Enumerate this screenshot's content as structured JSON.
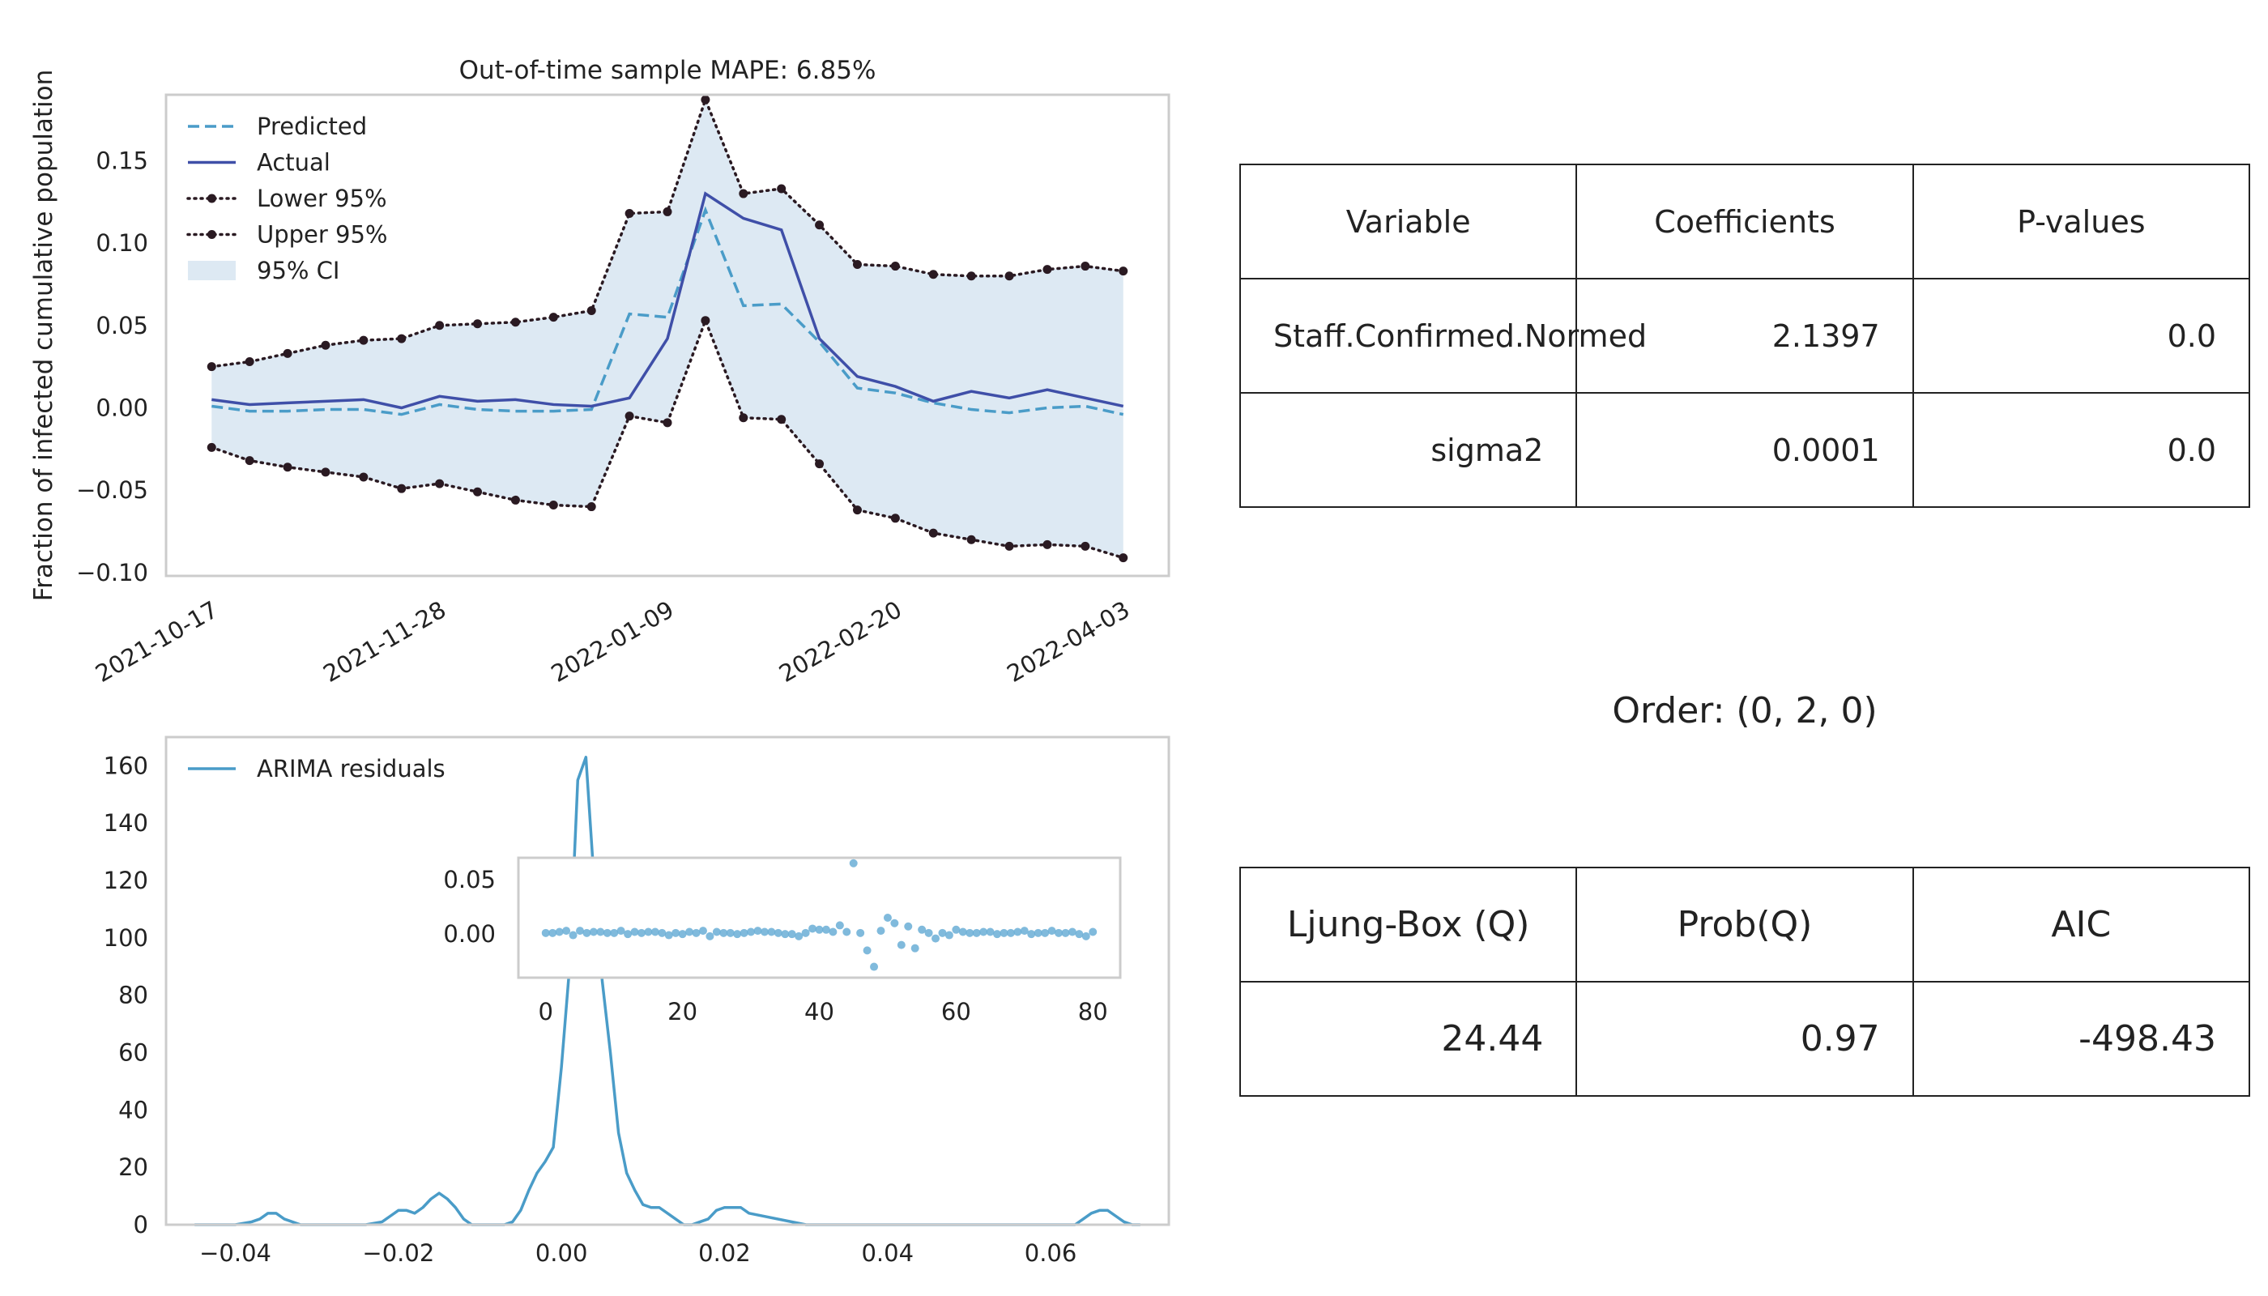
{
  "chart_data": [
    {
      "type": "line",
      "title": "Out-of-time sample MAPE: 6.85%",
      "xlabel": "",
      "ylabel": "Fraction of infected cumulative population",
      "x_tick_labels": [
        "2021-10-17",
        "2021-11-28",
        "2022-01-09",
        "2022-02-20",
        "2022-04-03"
      ],
      "yticks": [
        -0.1,
        -0.05,
        0.0,
        0.05,
        0.1,
        0.15
      ],
      "ylim": [
        -0.102,
        0.19
      ],
      "grid": false,
      "legend_position": "upper-left",
      "x": [
        "2021-10-17",
        "2021-10-24",
        "2021-10-31",
        "2021-11-07",
        "2021-11-14",
        "2021-11-21",
        "2021-11-28",
        "2021-12-05",
        "2021-12-12",
        "2021-12-19",
        "2021-12-26",
        "2022-01-02",
        "2022-01-09",
        "2022-01-16",
        "2022-01-23",
        "2022-01-30",
        "2022-02-06",
        "2022-02-13",
        "2022-02-20",
        "2022-02-27",
        "2022-03-06",
        "2022-03-13",
        "2022-03-20",
        "2022-03-27",
        "2022-04-03"
      ],
      "series": [
        {
          "name": "Predicted",
          "style": "dashed",
          "color": "#4a9cc8",
          "values": [
            0.001,
            -0.002,
            -0.002,
            -0.001,
            -0.001,
            -0.004,
            0.002,
            -0.001,
            -0.002,
            -0.002,
            -0.001,
            0.057,
            0.055,
            0.12,
            0.062,
            0.063,
            0.04,
            0.012,
            0.009,
            0.003,
            -0.001,
            -0.003,
            0.0,
            0.001,
            -0.004
          ]
        },
        {
          "name": "Actual",
          "style": "solid",
          "color": "#3f4fa8",
          "values": [
            0.005,
            0.002,
            0.003,
            0.004,
            0.005,
            0.0,
            0.007,
            0.004,
            0.005,
            0.002,
            0.001,
            0.006,
            0.042,
            0.13,
            0.115,
            0.108,
            0.042,
            0.019,
            0.013,
            0.004,
            0.01,
            0.006,
            0.011,
            0.006,
            0.001
          ]
        },
        {
          "name": "Lower 95%",
          "style": "dotted-markers",
          "color": "#2a1a22",
          "values": [
            -0.024,
            -0.032,
            -0.036,
            -0.039,
            -0.042,
            -0.049,
            -0.046,
            -0.051,
            -0.056,
            -0.059,
            -0.06,
            -0.005,
            -0.009,
            0.053,
            -0.006,
            -0.007,
            -0.034,
            -0.062,
            -0.067,
            -0.076,
            -0.08,
            -0.084,
            -0.083,
            -0.084,
            -0.091
          ]
        },
        {
          "name": "Upper 95%",
          "style": "dotted-markers",
          "color": "#2a1a22",
          "values": [
            0.025,
            0.028,
            0.033,
            0.038,
            0.041,
            0.042,
            0.05,
            0.051,
            0.052,
            0.055,
            0.059,
            0.118,
            0.119,
            0.187,
            0.13,
            0.133,
            0.111,
            0.087,
            0.086,
            0.081,
            0.08,
            0.08,
            0.084,
            0.086,
            0.083
          ]
        },
        {
          "name": "95% CI",
          "style": "band",
          "color": "#dde9f3"
        }
      ]
    },
    {
      "type": "line",
      "xlabel": "",
      "ylabel": "",
      "xticks": [
        -0.04,
        -0.02,
        0.0,
        0.02,
        0.04,
        0.06
      ],
      "yticks": [
        0,
        20,
        40,
        60,
        80,
        100,
        120,
        140,
        160
      ],
      "xlim": [
        -0.0485,
        0.0745
      ],
      "ylim": [
        0,
        170
      ],
      "grid": false,
      "legend_position": "upper-left",
      "x": [
        -0.045,
        -0.04,
        -0.038,
        -0.037,
        -0.036,
        -0.035,
        -0.034,
        -0.032,
        -0.028,
        -0.024,
        -0.022,
        -0.021,
        -0.02,
        -0.019,
        -0.018,
        -0.017,
        -0.016,
        -0.015,
        -0.014,
        -0.013,
        -0.012,
        -0.011,
        -0.01,
        -0.009,
        -0.008,
        -0.007,
        -0.006,
        -0.005,
        -0.004,
        -0.003,
        -0.002,
        -0.001,
        0.0,
        0.001,
        0.002,
        0.003,
        0.004,
        0.005,
        0.006,
        0.007,
        0.008,
        0.009,
        0.01,
        0.011,
        0.012,
        0.013,
        0.014,
        0.015,
        0.016,
        0.017,
        0.018,
        0.019,
        0.02,
        0.021,
        0.022,
        0.023,
        0.03,
        0.04,
        0.05,
        0.06,
        0.061,
        0.062,
        0.063,
        0.064,
        0.065,
        0.066,
        0.067,
        0.068,
        0.069,
        0.07,
        0.071
      ],
      "series": [
        {
          "name": "ARIMA residuals",
          "color": "#4a9cc8",
          "values": [
            0,
            0,
            1,
            2,
            4,
            4,
            2,
            0,
            0,
            0,
            1,
            3,
            5,
            5,
            4,
            6,
            9,
            11,
            9,
            6,
            2,
            0,
            0,
            0,
            0,
            0,
            1,
            5,
            12,
            18,
            22,
            27,
            55,
            90,
            155,
            163,
            120,
            85,
            60,
            32,
            18,
            12,
            7,
            6,
            6,
            4,
            2,
            0,
            0,
            1,
            2,
            5,
            6,
            6,
            6,
            4,
            0,
            0,
            0,
            0,
            0,
            0,
            0,
            2,
            4,
            5,
            5,
            3,
            1,
            0,
            0
          ]
        }
      ]
    },
    {
      "type": "scatter",
      "xlabel": "",
      "ylabel": "",
      "xticks": [
        0,
        20,
        40,
        60,
        80
      ],
      "yticks": [
        0.0,
        0.05
      ],
      "xlim": [
        -4,
        84
      ],
      "ylim": [
        -0.04,
        0.07
      ],
      "grid": false,
      "color": "#6aaed6",
      "x": [
        0,
        1,
        2,
        3,
        4,
        5,
        6,
        7,
        8,
        9,
        10,
        11,
        12,
        13,
        14,
        15,
        16,
        17,
        18,
        19,
        20,
        21,
        22,
        23,
        24,
        25,
        26,
        27,
        28,
        29,
        30,
        31,
        32,
        33,
        34,
        35,
        36,
        37,
        38,
        39,
        40,
        41,
        42,
        43,
        44,
        45,
        46,
        47,
        48,
        49,
        50,
        51,
        52,
        53,
        54,
        55,
        56,
        57,
        58,
        59,
        60,
        61,
        62,
        63,
        64,
        65,
        66,
        67,
        68,
        69,
        70,
        71,
        72,
        73,
        74,
        75,
        76,
        77,
        78,
        79,
        80
      ],
      "values": [
        0.001,
        0.001,
        0.002,
        0.003,
        -0.001,
        0.003,
        0.001,
        0.002,
        0.002,
        0.001,
        0.001,
        0.003,
        0.0,
        0.002,
        0.001,
        0.002,
        0.002,
        0.001,
        -0.001,
        0.001,
        0.0,
        0.002,
        0.001,
        0.003,
        -0.002,
        0.002,
        0.001,
        0.001,
        0.0,
        0.001,
        0.002,
        0.003,
        0.002,
        0.002,
        0.001,
        0.0,
        0.0,
        -0.002,
        0.001,
        0.005,
        0.004,
        0.004,
        0.002,
        0.008,
        0.002,
        0.065,
        0.001,
        -0.015,
        -0.03,
        0.003,
        0.015,
        0.01,
        -0.01,
        0.007,
        -0.013,
        0.004,
        0.001,
        -0.004,
        0.001,
        -0.001,
        0.004,
        0.002,
        0.001,
        0.001,
        0.002,
        0.002,
        0.0,
        0.001,
        0.001,
        0.002,
        0.003,
        0.0,
        0.001,
        0.001,
        0.003,
        0.001,
        0.001,
        0.002,
        0.0,
        -0.002,
        0.002
      ]
    }
  ],
  "coefficients_table": {
    "headers": [
      "Variable",
      "Coefficients",
      "P-values"
    ],
    "rows": [
      [
        "Staff.Confirmed.Normed",
        "2.1397",
        "0.0"
      ],
      [
        "sigma2",
        "0.0001",
        "0.0"
      ]
    ]
  },
  "order_label": "Order: (0, 2, 0)",
  "diagnostics_table": {
    "headers": [
      "Ljung-Box (Q)",
      "Prob(Q)",
      "AIC"
    ],
    "rows": [
      [
        "24.44",
        "0.97",
        "-498.43"
      ]
    ]
  }
}
